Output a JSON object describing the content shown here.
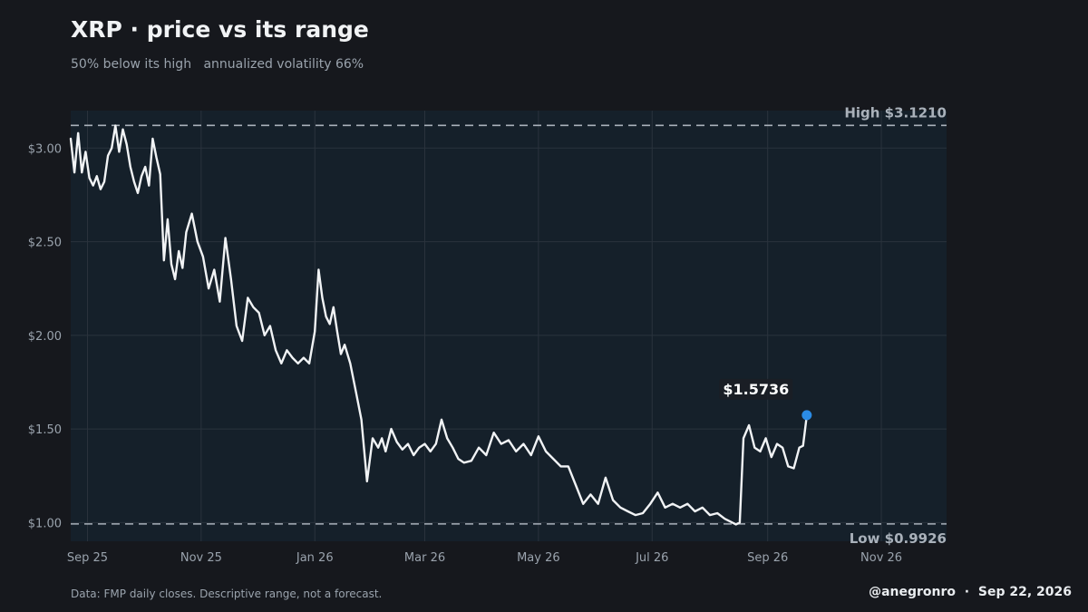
{
  "title": "XRP · price vs its range",
  "subtitle": {
    "below_high": "50% below its high",
    "volatility": "annualized volatility 66%"
  },
  "footnote": "Data: FMP daily closes. Descriptive range, not a forecast.",
  "credit": {
    "handle": "@anegronro",
    "separator": "·",
    "date": "Sep 22, 2026"
  },
  "colors": {
    "background": "#16181d",
    "plot_background": "#15202a",
    "line": "#f1f3f5",
    "marker": "#2b8ce6",
    "bound_line": "#a9b1ba",
    "grid": "#2a333d"
  },
  "chart_data": {
    "type": "line",
    "title": "XRP · price vs its range",
    "xlabel": "",
    "ylabel": "",
    "x_ticks": [
      "Sep 25",
      "Nov 25",
      "Jan 26",
      "Mar 26",
      "May 26",
      "Jul 26",
      "Sep 26",
      "Nov 26"
    ],
    "x_tick_dates": [
      "2025-09-01",
      "2025-11-01",
      "2026-01-01",
      "2026-03-01",
      "2026-05-01",
      "2026-07-01",
      "2026-09-01",
      "2026-11-01"
    ],
    "y_ticks": [
      "$1.00",
      "$1.50",
      "$2.00",
      "$2.50",
      "$3.00"
    ],
    "y_tick_values": [
      1.0,
      1.5,
      2.0,
      2.5,
      3.0
    ],
    "xlim": [
      "2025-08-23",
      "2026-12-06"
    ],
    "ylim": [
      0.9,
      3.2
    ],
    "grid": true,
    "legend": "none",
    "high": {
      "label": "High",
      "value_text": "$3.1210",
      "value": 3.121
    },
    "low": {
      "label": "Low",
      "value_text": "$0.9926",
      "value": 0.9926
    },
    "last": {
      "label": "$1.5736",
      "value": 1.5736,
      "date": "2026-09-22"
    },
    "series": [
      {
        "x": [
          "2025-08-23",
          "2025-08-25",
          "2025-08-27",
          "2025-08-29",
          "2025-08-31",
          "2025-09-02",
          "2025-09-04",
          "2025-09-06",
          "2025-09-08",
          "2025-09-10",
          "2025-09-12",
          "2025-09-14",
          "2025-09-16",
          "2025-09-18",
          "2025-09-20",
          "2025-09-22",
          "2025-09-24",
          "2025-09-26",
          "2025-09-28",
          "2025-09-30",
          "2025-10-02",
          "2025-10-04",
          "2025-10-06",
          "2025-10-08",
          "2025-10-10",
          "2025-10-12",
          "2025-10-14",
          "2025-10-16",
          "2025-10-18",
          "2025-10-20",
          "2025-10-22",
          "2025-10-24",
          "2025-10-27",
          "2025-10-30",
          "2025-11-02",
          "2025-11-05",
          "2025-11-08",
          "2025-11-11",
          "2025-11-14",
          "2025-11-17",
          "2025-11-20",
          "2025-11-23",
          "2025-11-26",
          "2025-11-29",
          "2025-12-02",
          "2025-12-05",
          "2025-12-08",
          "2025-12-11",
          "2025-12-14",
          "2025-12-17",
          "2025-12-20",
          "2025-12-23",
          "2025-12-26",
          "2025-12-29",
          "2026-01-01",
          "2026-01-03",
          "2026-01-05",
          "2026-01-07",
          "2026-01-09",
          "2026-01-11",
          "2026-01-13",
          "2026-01-15",
          "2026-01-17",
          "2026-01-20",
          "2026-01-23",
          "2026-01-26",
          "2026-01-29",
          "2026-02-01",
          "2026-02-04",
          "2026-02-06",
          "2026-02-08",
          "2026-02-11",
          "2026-02-14",
          "2026-02-17",
          "2026-02-20",
          "2026-02-23",
          "2026-02-26",
          "2026-03-01",
          "2026-03-04",
          "2026-03-07",
          "2026-03-10",
          "2026-03-13",
          "2026-03-16",
          "2026-03-19",
          "2026-03-22",
          "2026-03-26",
          "2026-03-30",
          "2026-04-03",
          "2026-04-07",
          "2026-04-11",
          "2026-04-15",
          "2026-04-19",
          "2026-04-23",
          "2026-04-27",
          "2026-05-01",
          "2026-05-05",
          "2026-05-09",
          "2026-05-13",
          "2026-05-17",
          "2026-05-21",
          "2026-05-25",
          "2026-05-29",
          "2026-06-02",
          "2026-06-06",
          "2026-06-10",
          "2026-06-14",
          "2026-06-18",
          "2026-06-22",
          "2026-06-26",
          "2026-06-30",
          "2026-07-04",
          "2026-07-08",
          "2026-07-12",
          "2026-07-16",
          "2026-07-20",
          "2026-07-24",
          "2026-07-28",
          "2026-08-01",
          "2026-08-05",
          "2026-08-09",
          "2026-08-13",
          "2026-08-15",
          "2026-08-17",
          "2026-08-19",
          "2026-08-22",
          "2026-08-25",
          "2026-08-28",
          "2026-08-31",
          "2026-09-03",
          "2026-09-06",
          "2026-09-09",
          "2026-09-12",
          "2026-09-15",
          "2026-09-18",
          "2026-09-20",
          "2026-09-22"
        ],
        "y": [
          3.05,
          2.87,
          3.08,
          2.87,
          2.98,
          2.84,
          2.8,
          2.85,
          2.78,
          2.82,
          2.96,
          3.0,
          3.12,
          2.98,
          3.1,
          3.02,
          2.9,
          2.82,
          2.76,
          2.85,
          2.9,
          2.8,
          3.05,
          2.95,
          2.86,
          2.4,
          2.62,
          2.38,
          2.3,
          2.45,
          2.36,
          2.55,
          2.65,
          2.5,
          2.42,
          2.25,
          2.35,
          2.18,
          2.52,
          2.3,
          2.05,
          1.97,
          2.2,
          2.15,
          2.12,
          2.0,
          2.05,
          1.92,
          1.85,
          1.92,
          1.88,
          1.85,
          1.88,
          1.85,
          2.02,
          2.35,
          2.2,
          2.1,
          2.06,
          2.15,
          2.02,
          1.9,
          1.95,
          1.85,
          1.7,
          1.55,
          1.22,
          1.45,
          1.4,
          1.45,
          1.38,
          1.5,
          1.43,
          1.39,
          1.42,
          1.36,
          1.4,
          1.42,
          1.38,
          1.42,
          1.55,
          1.45,
          1.4,
          1.34,
          1.32,
          1.33,
          1.4,
          1.36,
          1.48,
          1.42,
          1.44,
          1.38,
          1.42,
          1.36,
          1.46,
          1.38,
          1.34,
          1.3,
          1.3,
          1.2,
          1.1,
          1.15,
          1.1,
          1.24,
          1.12,
          1.08,
          1.06,
          1.04,
          1.05,
          1.1,
          1.16,
          1.08,
          1.1,
          1.08,
          1.1,
          1.06,
          1.08,
          1.04,
          1.05,
          1.02,
          1.0,
          0.99,
          1.0,
          1.45,
          1.52,
          1.4,
          1.38,
          1.45,
          1.35,
          1.42,
          1.4,
          1.3,
          1.29,
          1.4,
          1.41,
          1.5736
        ]
      }
    ]
  }
}
